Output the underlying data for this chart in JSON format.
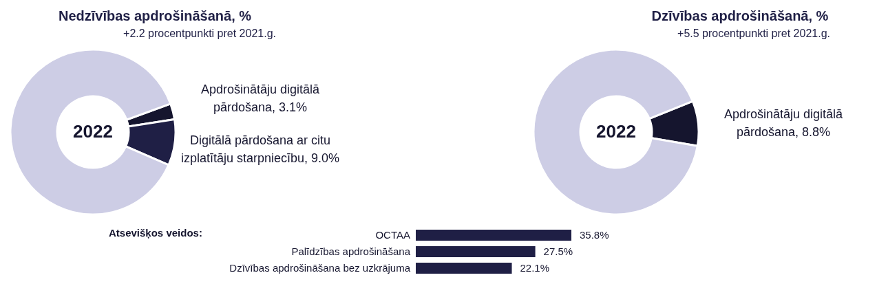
{
  "chart_data": [
    {
      "type": "donut",
      "title": "Nedzīvības apdrošināšanā, %",
      "subtitle": "+2.2 procentpunkti pret 2021.g.",
      "categories": [
        "Apdrošinātāju digitālā pārdošana",
        "Digitālā pārdošana ar citu izplatītāju starpniecību",
        null
      ],
      "values": [
        3.1,
        9.0,
        87.9
      ],
      "value_labels": [
        ", 3.1%",
        ", 9.0%",
        null
      ],
      "colors": [
        "#15152e",
        "#1f1f45",
        "#cdcde5"
      ],
      "annotations": [
        "2022"
      ]
    },
    {
      "type": "donut",
      "title": "Dzīvības apdrošināšanā, %",
      "subtitle": "+5.5 procentpunkti pret 2021.g.",
      "categories": [
        "Apdrošinātāju digitālā pārdošana",
        null
      ],
      "values": [
        8.8,
        91.2
      ],
      "value_labels": [
        ", 8.8%",
        null
      ],
      "colors": [
        "#15152e",
        "#cdcde5"
      ],
      "annotations": [
        "2022"
      ]
    },
    {
      "type": "bar",
      "orientation": "horizontal",
      "title": "Atsevišķos veidos:",
      "categories": [
        "OCTAA",
        "Palīdzības apdrošināšana",
        "Dzīvības apdrošināšana bez uzkrājuma"
      ],
      "values": [
        35.8,
        27.5,
        22.1
      ],
      "value_labels": [
        "35.8%",
        "27.5%",
        "22.1%"
      ],
      "color": "#1f1f45"
    }
  ]
}
